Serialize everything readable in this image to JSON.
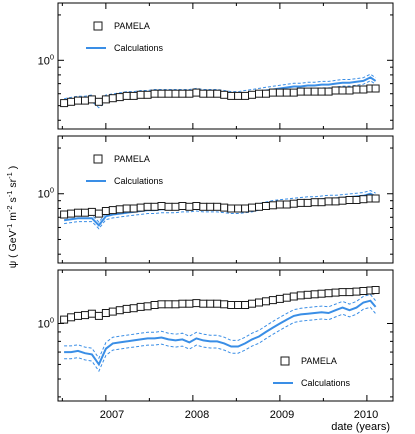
{
  "figure": {
    "xlabel": "date (years)",
    "ylabel_parts": [
      "ψ ( GeV",
      "-1",
      " m",
      "-2",
      " s",
      "-1",
      " sr",
      "-1",
      " )"
    ],
    "x_tick_labels": [
      "2007",
      "2008",
      "2009",
      "2010"
    ],
    "y_tick_base": "10",
    "y_tick_exp": "0"
  },
  "chart_data": [
    {
      "type": "line",
      "ylog": true,
      "xlim": [
        2006.45,
        2010.3
      ],
      "ylim": [
        0.35,
        2.4
      ],
      "y_tick_value": 1,
      "legend_position": "top-left",
      "legend": [
        "PAMELA",
        "Calculations"
      ],
      "series": [
        {
          "name": "PAMELA",
          "style": "open-square",
          "x": [
            2006.52,
            2006.6,
            2006.68,
            2006.76,
            2006.84,
            2006.92,
            2007.0,
            2007.08,
            2007.16,
            2007.24,
            2007.32,
            2007.4,
            2007.48,
            2007.56,
            2007.64,
            2007.72,
            2007.8,
            2007.88,
            2007.96,
            2008.04,
            2008.12,
            2008.2,
            2008.28,
            2008.36,
            2008.44,
            2008.52,
            2008.6,
            2008.68,
            2008.76,
            2008.84,
            2008.92,
            2009.0,
            2009.08,
            2009.16,
            2009.24,
            2009.32,
            2009.4,
            2009.48,
            2009.56,
            2009.64,
            2009.72,
            2009.8,
            2009.88,
            2009.96,
            2010.04,
            2010.1
          ],
          "y": [
            0.52,
            0.53,
            0.54,
            0.54,
            0.55,
            0.53,
            0.55,
            0.56,
            0.57,
            0.58,
            0.58,
            0.59,
            0.59,
            0.6,
            0.6,
            0.6,
            0.6,
            0.6,
            0.6,
            0.61,
            0.6,
            0.6,
            0.6,
            0.59,
            0.58,
            0.58,
            0.58,
            0.59,
            0.6,
            0.6,
            0.61,
            0.61,
            0.61,
            0.61,
            0.62,
            0.62,
            0.62,
            0.62,
            0.62,
            0.63,
            0.63,
            0.63,
            0.64,
            0.64,
            0.65,
            0.65
          ]
        },
        {
          "name": "Calculations",
          "style": "solid",
          "band": "dashed",
          "x": [
            2006.52,
            2006.6,
            2006.68,
            2006.76,
            2006.84,
            2006.92,
            2007.0,
            2007.08,
            2007.16,
            2007.24,
            2007.32,
            2007.4,
            2007.48,
            2007.56,
            2007.64,
            2007.72,
            2007.8,
            2007.88,
            2007.96,
            2008.04,
            2008.12,
            2008.2,
            2008.28,
            2008.36,
            2008.44,
            2008.52,
            2008.6,
            2008.68,
            2008.76,
            2008.84,
            2008.92,
            2009.0,
            2009.08,
            2009.16,
            2009.24,
            2009.32,
            2009.4,
            2009.48,
            2009.56,
            2009.64,
            2009.72,
            2009.8,
            2009.88,
            2009.96,
            2010.04,
            2010.1
          ],
          "y": [
            0.53,
            0.54,
            0.55,
            0.55,
            0.56,
            0.51,
            0.56,
            0.57,
            0.58,
            0.59,
            0.59,
            0.6,
            0.6,
            0.61,
            0.61,
            0.61,
            0.61,
            0.61,
            0.61,
            0.62,
            0.61,
            0.61,
            0.61,
            0.6,
            0.59,
            0.59,
            0.6,
            0.61,
            0.62,
            0.63,
            0.64,
            0.65,
            0.66,
            0.67,
            0.67,
            0.68,
            0.68,
            0.69,
            0.69,
            0.7,
            0.71,
            0.71,
            0.72,
            0.73,
            0.77,
            0.73
          ]
        }
      ]
    },
    {
      "type": "line",
      "ylog": true,
      "xlim": [
        2006.45,
        2010.3
      ],
      "ylim": [
        0.35,
        2.4
      ],
      "y_tick_value": 1,
      "legend_position": "top-left",
      "legend": [
        "PAMELA",
        "Calculations"
      ],
      "series": [
        {
          "name": "PAMELA",
          "style": "open-square",
          "x": [
            2006.52,
            2006.6,
            2006.68,
            2006.76,
            2006.84,
            2006.92,
            2007.0,
            2007.08,
            2007.16,
            2007.24,
            2007.32,
            2007.4,
            2007.48,
            2007.56,
            2007.64,
            2007.72,
            2007.8,
            2007.88,
            2007.96,
            2008.04,
            2008.12,
            2008.2,
            2008.28,
            2008.36,
            2008.44,
            2008.52,
            2008.6,
            2008.68,
            2008.76,
            2008.84,
            2008.92,
            2009.0,
            2009.08,
            2009.16,
            2009.24,
            2009.32,
            2009.4,
            2009.48,
            2009.56,
            2009.64,
            2009.72,
            2009.8,
            2009.88,
            2009.96,
            2010.04,
            2010.1
          ],
          "y": [
            0.73,
            0.74,
            0.75,
            0.75,
            0.76,
            0.74,
            0.77,
            0.78,
            0.79,
            0.8,
            0.8,
            0.81,
            0.82,
            0.82,
            0.83,
            0.82,
            0.82,
            0.83,
            0.82,
            0.83,
            0.82,
            0.82,
            0.82,
            0.81,
            0.8,
            0.8,
            0.8,
            0.81,
            0.82,
            0.83,
            0.84,
            0.85,
            0.85,
            0.86,
            0.87,
            0.87,
            0.88,
            0.88,
            0.89,
            0.89,
            0.9,
            0.91,
            0.91,
            0.92,
            0.93,
            0.93
          ]
        },
        {
          "name": "Calculations",
          "style": "solid",
          "band": "dashed",
          "x": [
            2006.52,
            2006.6,
            2006.68,
            2006.76,
            2006.84,
            2006.92,
            2007.0,
            2007.08,
            2007.16,
            2007.24,
            2007.32,
            2007.4,
            2007.48,
            2007.56,
            2007.64,
            2007.72,
            2007.8,
            2007.88,
            2007.96,
            2008.04,
            2008.12,
            2008.2,
            2008.28,
            2008.36,
            2008.44,
            2008.52,
            2008.6,
            2008.68,
            2008.76,
            2008.84,
            2008.92,
            2009.0,
            2009.08,
            2009.16,
            2009.24,
            2009.32,
            2009.4,
            2009.48,
            2009.56,
            2009.64,
            2009.72,
            2009.8,
            2009.88,
            2009.96,
            2010.04,
            2010.1
          ],
          "y": [
            0.67,
            0.68,
            0.69,
            0.69,
            0.69,
            0.62,
            0.71,
            0.73,
            0.74,
            0.75,
            0.76,
            0.77,
            0.78,
            0.78,
            0.79,
            0.79,
            0.79,
            0.8,
            0.8,
            0.81,
            0.8,
            0.8,
            0.8,
            0.79,
            0.78,
            0.78,
            0.79,
            0.8,
            0.82,
            0.84,
            0.86,
            0.87,
            0.88,
            0.89,
            0.9,
            0.91,
            0.91,
            0.92,
            0.93,
            0.93,
            0.94,
            0.95,
            0.96,
            0.97,
            1.0,
            0.96
          ]
        }
      ]
    },
    {
      "type": "line",
      "ylog": true,
      "xlim": [
        2006.45,
        2010.3
      ],
      "ylim": [
        0.38,
        1.95
      ],
      "y_tick_value": 1,
      "legend_position": "bottom-right",
      "legend": [
        "PAMELA",
        "Calculations"
      ],
      "series": [
        {
          "name": "PAMELA",
          "style": "open-square",
          "x": [
            2006.52,
            2006.6,
            2006.68,
            2006.76,
            2006.84,
            2006.92,
            2007.0,
            2007.08,
            2007.16,
            2007.24,
            2007.32,
            2007.4,
            2007.48,
            2007.56,
            2007.64,
            2007.72,
            2007.8,
            2007.88,
            2007.96,
            2008.04,
            2008.12,
            2008.2,
            2008.28,
            2008.36,
            2008.44,
            2008.52,
            2008.6,
            2008.68,
            2008.76,
            2008.84,
            2008.92,
            2009.0,
            2009.08,
            2009.16,
            2009.24,
            2009.32,
            2009.4,
            2009.48,
            2009.56,
            2009.64,
            2009.72,
            2009.8,
            2009.88,
            2009.96,
            2010.04,
            2010.1
          ],
          "y": [
            1.05,
            1.08,
            1.1,
            1.11,
            1.13,
            1.1,
            1.14,
            1.16,
            1.18,
            1.2,
            1.21,
            1.23,
            1.24,
            1.26,
            1.27,
            1.27,
            1.27,
            1.28,
            1.28,
            1.29,
            1.28,
            1.28,
            1.28,
            1.27,
            1.26,
            1.26,
            1.26,
            1.28,
            1.3,
            1.32,
            1.34,
            1.36,
            1.38,
            1.4,
            1.42,
            1.43,
            1.44,
            1.45,
            1.46,
            1.47,
            1.48,
            1.48,
            1.49,
            1.5,
            1.51,
            1.52
          ]
        },
        {
          "name": "Calculations",
          "style": "solid",
          "band": "dashed",
          "x": [
            2006.52,
            2006.6,
            2006.68,
            2006.76,
            2006.84,
            2006.92,
            2007.0,
            2007.08,
            2007.16,
            2007.24,
            2007.32,
            2007.4,
            2007.48,
            2007.56,
            2007.64,
            2007.72,
            2007.8,
            2007.88,
            2007.96,
            2008.04,
            2008.12,
            2008.2,
            2008.28,
            2008.36,
            2008.44,
            2008.52,
            2008.6,
            2008.68,
            2008.76,
            2008.84,
            2008.92,
            2009.0,
            2009.08,
            2009.16,
            2009.24,
            2009.32,
            2009.4,
            2009.48,
            2009.56,
            2009.64,
            2009.72,
            2009.8,
            2009.88,
            2009.96,
            2010.04,
            2010.1
          ],
          "y": [
            0.7,
            0.7,
            0.71,
            0.69,
            0.68,
            0.6,
            0.73,
            0.78,
            0.79,
            0.8,
            0.81,
            0.82,
            0.83,
            0.83,
            0.84,
            0.82,
            0.81,
            0.82,
            0.79,
            0.83,
            0.81,
            0.8,
            0.8,
            0.78,
            0.75,
            0.75,
            0.78,
            0.82,
            0.85,
            0.9,
            0.95,
            1.0,
            1.05,
            1.1,
            1.12,
            1.13,
            1.14,
            1.15,
            1.14,
            1.18,
            1.22,
            1.18,
            1.22,
            1.3,
            1.33,
            1.23
          ]
        }
      ]
    }
  ],
  "colors": {
    "calc": "#3a8ee6",
    "pamela": "#1a1a1a",
    "frame": "#000000"
  }
}
